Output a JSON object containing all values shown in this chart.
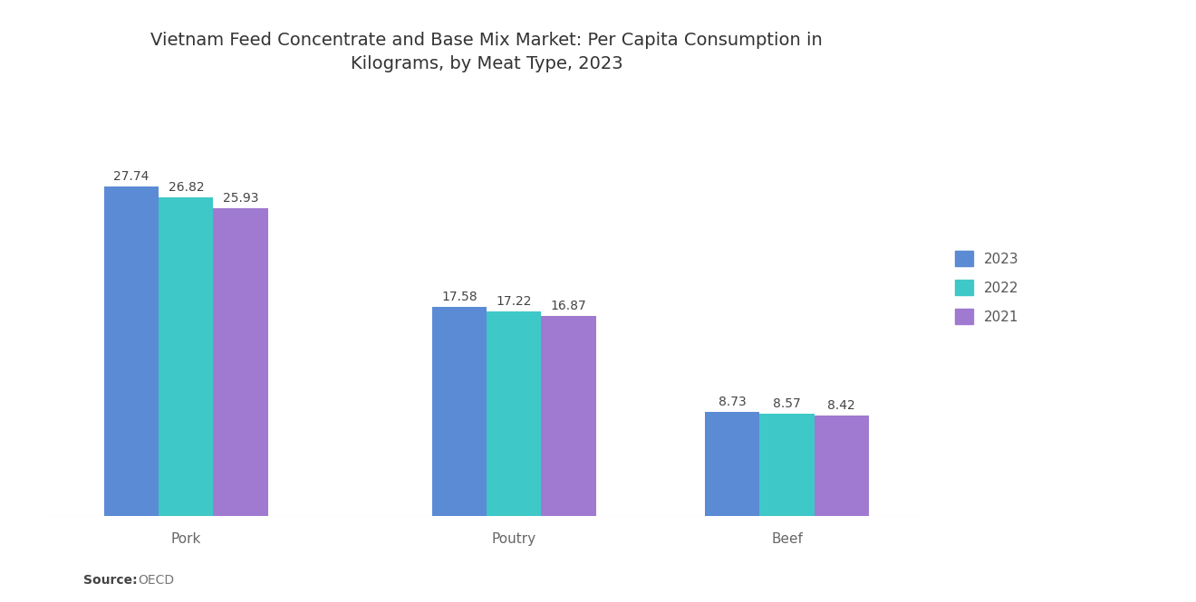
{
  "title": "Vietnam Feed Concentrate and Base Mix Market: Per Capita Consumption in\nKilograms, by Meat Type, 2023",
  "categories": [
    "Pork",
    "Poutry",
    "Beef"
  ],
  "years": [
    "2023",
    "2022",
    "2021"
  ],
  "values": {
    "2023": [
      27.74,
      17.58,
      8.73
    ],
    "2022": [
      26.82,
      17.22,
      8.57
    ],
    "2021": [
      25.93,
      16.87,
      8.42
    ]
  },
  "colors": {
    "2023": "#5B8BD4",
    "2022": "#3EC8C8",
    "2021": "#A07AD0"
  },
  "source_label": "Source:",
  "source_value": "OECD",
  "background_color": "#ffffff",
  "title_fontsize": 14,
  "label_fontsize": 11,
  "tick_fontsize": 11,
  "value_fontsize": 10,
  "bar_width": 0.2,
  "ylim": [
    0,
    35
  ]
}
